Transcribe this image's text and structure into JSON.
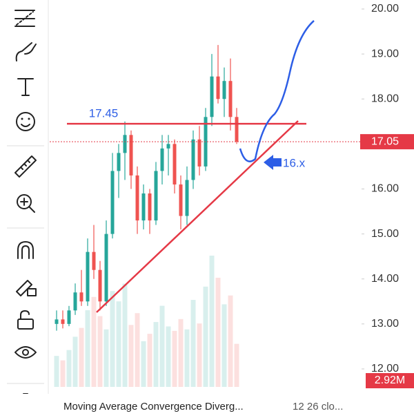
{
  "chart_data": {
    "type": "candlestick",
    "ylim": [
      11.6,
      20.2
    ],
    "yticks": [
      {
        "value": 12,
        "label": "12.00"
      },
      {
        "value": 13,
        "label": "13.00"
      },
      {
        "value": 14,
        "label": "14.00"
      },
      {
        "value": 15,
        "label": "15.00"
      },
      {
        "value": 16,
        "label": "16.00"
      },
      {
        "value": 17,
        "label": "17.00"
      },
      {
        "value": 18,
        "label": "18.00"
      },
      {
        "value": 19,
        "label": "19.00"
      },
      {
        "value": 20,
        "label": "20.00"
      }
    ],
    "open": [
      13.0,
      13.1,
      13.0,
      13.3,
      13.7,
      13.5,
      14.6,
      14.2,
      13.5,
      15.0,
      16.4,
      16.8,
      17.2,
      16.3,
      15.3,
      15.9,
      15.3,
      16.4,
      16.9,
      17.0,
      16.1,
      15.4,
      16.2,
      17.1,
      16.5,
      17.6,
      18.5,
      18.0,
      18.4,
      17.6
    ],
    "high": [
      13.3,
      13.3,
      13.4,
      13.9,
      14.2,
      14.9,
      15.2,
      14.4,
      15.3,
      16.8,
      17.0,
      17.5,
      17.3,
      16.5,
      16.1,
      16.0,
      16.6,
      17.2,
      17.2,
      17.1,
      16.3,
      16.5,
      17.3,
      17.4,
      17.8,
      19.0,
      19.2,
      18.7,
      18.9,
      17.8
    ],
    "low": [
      12.85,
      12.9,
      12.95,
      13.2,
      13.4,
      13.4,
      14.0,
      13.3,
      13.4,
      14.9,
      15.8,
      16.2,
      16.0,
      15.0,
      15.1,
      15.0,
      15.2,
      16.1,
      16.3,
      15.9,
      15.1,
      15.2,
      16.0,
      16.3,
      16.4,
      17.4,
      17.9,
      17.6,
      17.3,
      17.0
    ],
    "close": [
      13.1,
      13.0,
      13.3,
      13.7,
      13.5,
      14.6,
      14.2,
      13.5,
      15.0,
      16.4,
      16.8,
      17.2,
      16.3,
      15.3,
      15.9,
      15.3,
      16.4,
      16.9,
      17.0,
      16.1,
      15.4,
      16.2,
      17.1,
      16.5,
      17.6,
      18.5,
      18.0,
      18.4,
      17.6,
      17.05
    ],
    "volume": [
      2.1,
      1.8,
      2.5,
      3.4,
      4.0,
      5.2,
      6.1,
      4.8,
      3.9,
      6.5,
      5.8,
      7.0,
      4.2,
      5.0,
      3.1,
      3.6,
      4.4,
      5.5,
      4.1,
      3.8,
      4.6,
      3.9,
      5.9,
      4.3,
      6.8,
      8.9,
      7.4,
      5.6,
      6.2,
      2.92
    ],
    "up_color": "#26a69a",
    "down_color": "#ef5350",
    "last_price": 17.05,
    "volume_label": "2.92M",
    "resistance": 17.45,
    "target_label": "16.x"
  },
  "indicator": {
    "name": "Moving Average Convergence Diverg...",
    "params": "12 26 clo..."
  }
}
